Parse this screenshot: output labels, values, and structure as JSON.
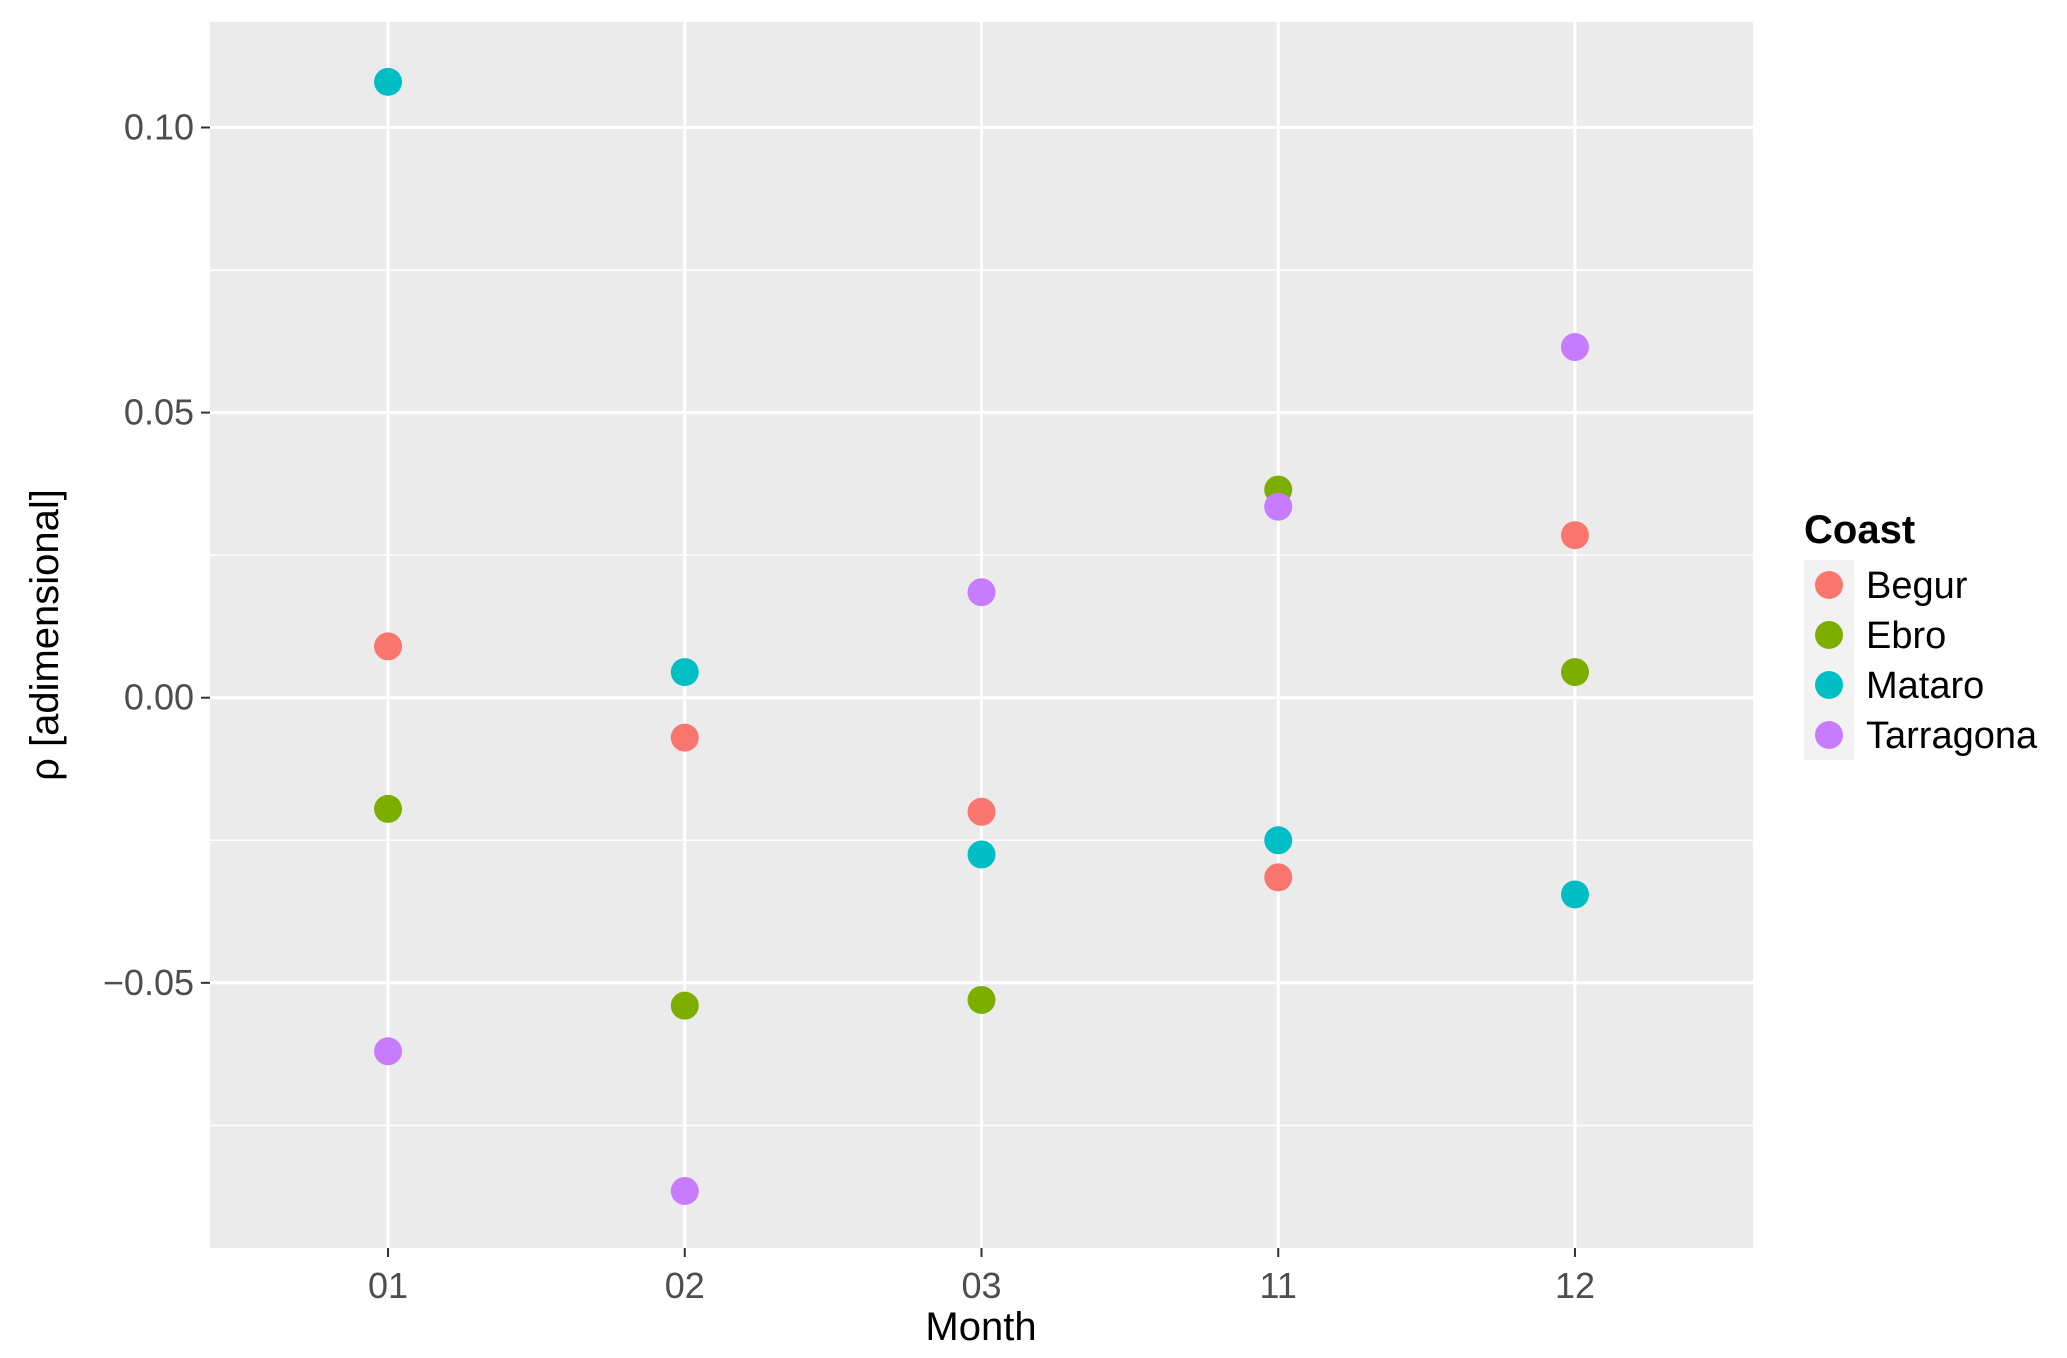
{
  "chart_data": {
    "type": "scatter",
    "xlabel": "Month",
    "ylabel": "ρ [adimensional]",
    "categories": [
      "01",
      "02",
      "03",
      "11",
      "12"
    ],
    "ylim": [
      -0.0965,
      0.1185
    ],
    "yticks": [
      -0.05,
      0.0,
      0.05,
      0.1
    ],
    "ytick_labels": [
      "−0.05",
      "0.00",
      "0.05",
      "0.10"
    ],
    "grid": true,
    "legend": {
      "title": "Coast",
      "position": "right"
    },
    "series": [
      {
        "name": "Begur",
        "color": "#F8766D",
        "values": [
          0.009,
          -0.007,
          -0.02,
          -0.0315,
          0.0285
        ]
      },
      {
        "name": "Ebro",
        "color": "#7CAE00",
        "values": [
          -0.0195,
          -0.054,
          -0.053,
          0.0365,
          0.0045
        ]
      },
      {
        "name": "Mataro",
        "color": "#00BFC4",
        "values": [
          0.108,
          0.0045,
          -0.0275,
          -0.025,
          -0.0345
        ]
      },
      {
        "name": "Tarragona",
        "color": "#C77CFF",
        "values": [
          -0.062,
          -0.0865,
          0.0185,
          0.0335,
          0.0615
        ]
      }
    ]
  }
}
